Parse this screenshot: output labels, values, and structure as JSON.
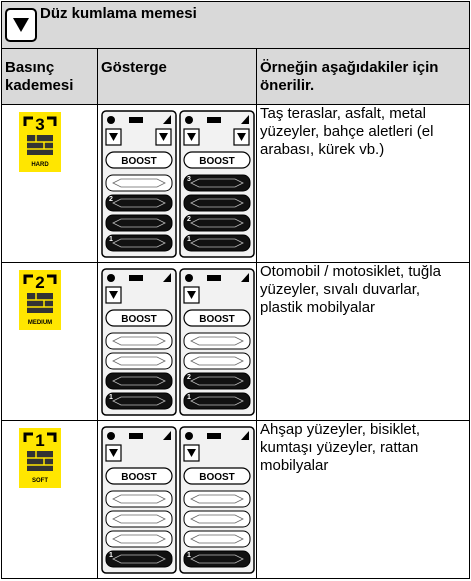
{
  "header": {
    "title": "Düz kumlama memesi"
  },
  "table": {
    "columns": [
      "Basınç kademesi",
      "Gösterge",
      "Örneğin aşağıdakiler için önerilir."
    ],
    "rows": [
      {
        "level": {
          "number": "3",
          "label": "HARD"
        },
        "displays": [
          {
            "icons": 2,
            "boost": "BOOST",
            "bars": [
              {
                "filled": false
              },
              {
                "filled": true,
                "digit": "2"
              },
              {
                "filled": true
              },
              {
                "filled": true,
                "digit": "1"
              }
            ]
          },
          {
            "icons": 2,
            "boost": "BOOST",
            "bars": [
              {
                "filled": true,
                "digit": "3"
              },
              {
                "filled": true
              },
              {
                "filled": true,
                "digit": "2"
              },
              {
                "filled": true,
                "digit": "1"
              }
            ]
          }
        ],
        "description": "Taş teraslar, asfalt, metal yüzeyler, bahçe aletleri (el arabası, kürek vb.)"
      },
      {
        "level": {
          "number": "2",
          "label": "MEDIUM"
        },
        "displays": [
          {
            "icons": 1,
            "boost": "BOOST",
            "bars": [
              {
                "filled": false
              },
              {
                "filled": false
              },
              {
                "filled": true
              },
              {
                "filled": true,
                "digit": "1"
              }
            ]
          },
          {
            "icons": 1,
            "boost": "BOOST",
            "bars": [
              {
                "filled": false
              },
              {
                "filled": false
              },
              {
                "filled": true,
                "digit": "2"
              },
              {
                "filled": true,
                "digit": "1"
              }
            ]
          }
        ],
        "description": "Otomobil / motosiklet, tuğla yüzeyler, sıvalı du­varlar, plastik mobilyalar"
      },
      {
        "level": {
          "number": "1",
          "label": "SOFT"
        },
        "displays": [
          {
            "icons": 1,
            "boost": "BOOST",
            "bars": [
              {
                "filled": false
              },
              {
                "filled": false
              },
              {
                "filled": false
              },
              {
                "filled": true,
                "digit": "1"
              }
            ]
          },
          {
            "icons": 1,
            "boost": "BOOST",
            "bars": [
              {
                "filled": false
              },
              {
                "filled": false
              },
              {
                "filled": false
              },
              {
                "filled": true,
                "digit": "1"
              }
            ]
          }
        ],
        "description": "Ahşap yüzeyler, bisiklet, kumtaşı yüzeyler, rattan mobilyalar"
      }
    ]
  }
}
